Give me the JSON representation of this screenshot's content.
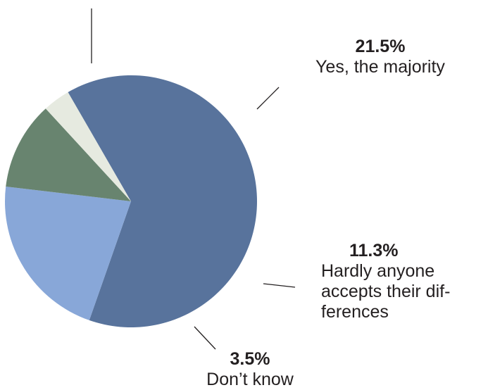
{
  "chart_data": {
    "type": "pie",
    "slices": [
      {
        "value": 63.7,
        "color": "#58739c"
      },
      {
        "value": 21.5,
        "label": "Yes, the majority",
        "pct_label": "21.5%",
        "color": "#88a7d8"
      },
      {
        "value": 11.3,
        "label": "Hardly anyone accepts their differences",
        "pct_label": "11.3%",
        "color": "#68846f"
      },
      {
        "value": 3.5,
        "label": "Don’t know",
        "pct_label": "3.5%",
        "color": "#e6eae0"
      }
    ]
  },
  "labels": {
    "yes_majority": {
      "pct": "21.5%",
      "text": "Yes, the majority"
    },
    "hardly_anyone": {
      "pct": "11.3%",
      "line1": "Hardly anyone",
      "line2": "accepts their dif-",
      "line3": "ferences"
    },
    "dont_know": {
      "pct": "3.5%",
      "text": "Don’t know"
    }
  }
}
